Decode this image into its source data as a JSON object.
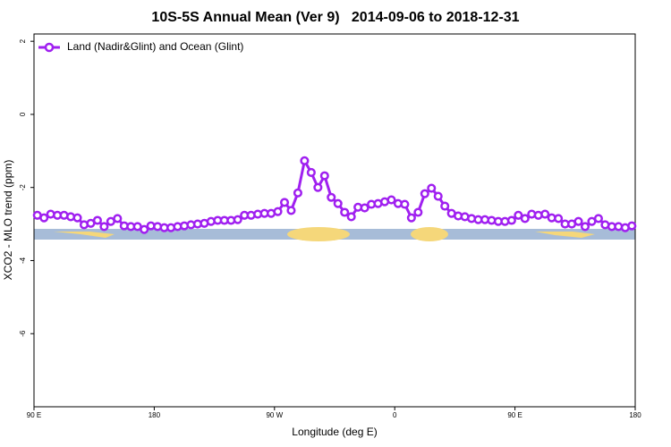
{
  "chart_data": {
    "type": "line",
    "title": "10S-5S Annual Mean (Ver 9)   2014-09-06 to 2018-12-31",
    "xlabel": "Longitude (deg E)",
    "ylabel": "XCO2 - MLO trend (ppm)",
    "xlim": [
      90,
      540
    ],
    "ylim": [
      -8,
      2.2
    ],
    "xticks": [
      {
        "value": 90,
        "label": "90 E"
      },
      180,
      {
        "value": 270,
        "label": "90 W"
      },
      {
        "value": 360,
        "label": "0"
      },
      {
        "value": 450,
        "label": "90 E"
      },
      {
        "value": 540,
        "label": "180"
      }
    ],
    "yticks": [
      2,
      0,
      -2,
      -4,
      -6
    ],
    "legend_position": "upper-left",
    "x": [
      92.5,
      97.5,
      102.5,
      107.5,
      112.5,
      117.5,
      122.5,
      127.5,
      132.5,
      137.5,
      142.5,
      147.5,
      152.5,
      157.5,
      162.5,
      167.5,
      172.5,
      177.5,
      182.5,
      187.5,
      192.5,
      197.5,
      202.5,
      207.5,
      212.5,
      217.5,
      222.5,
      227.5,
      232.5,
      237.5,
      242.5,
      247.5,
      252.5,
      257.5,
      262.5,
      267.5,
      272.5,
      277.5,
      282.5,
      287.5,
      292.5,
      297.5,
      302.5,
      307.5,
      312.5,
      317.5,
      322.5,
      327.5,
      332.5,
      337.5,
      342.5,
      347.5,
      352.5,
      357.5,
      362.5,
      367.5,
      372.5,
      377.5,
      382.5,
      387.5,
      392.5,
      397.5,
      402.5,
      407.5,
      412.5,
      417.5,
      422.5,
      427.5,
      432.5,
      437.5,
      442.5,
      447.5,
      452.5,
      457.5,
      462.5,
      467.5,
      472.5,
      477.5,
      482.5,
      487.5,
      492.5,
      497.5,
      502.5,
      507.5,
      512.5,
      517.5,
      522.5,
      527.5,
      532.5,
      537.5
    ],
    "series": [
      {
        "name": "Land (Nadir&Glint) and Ocean (Glint)",
        "color": "#a020f0",
        "values": [
          -2.76,
          -2.83,
          -2.73,
          -2.76,
          -2.76,
          -2.8,
          -2.83,
          -3.02,
          -2.98,
          -2.9,
          -3.07,
          -2.93,
          -2.85,
          -3.05,
          -3.07,
          -3.07,
          -3.15,
          -3.05,
          -3.07,
          -3.1,
          -3.1,
          -3.07,
          -3.05,
          -3.02,
          -3.0,
          -2.98,
          -2.93,
          -2.9,
          -2.9,
          -2.9,
          -2.88,
          -2.76,
          -2.76,
          -2.73,
          -2.71,
          -2.71,
          -2.66,
          -2.41,
          -2.63,
          -2.15,
          -1.27,
          -1.59,
          -2.0,
          -1.68,
          -2.27,
          -2.44,
          -2.68,
          -2.8,
          -2.54,
          -2.56,
          -2.46,
          -2.44,
          -2.39,
          -2.34,
          -2.44,
          -2.46,
          -2.83,
          -2.68,
          -2.17,
          -2.02,
          -2.24,
          -2.51,
          -2.71,
          -2.78,
          -2.8,
          -2.85,
          -2.88,
          -2.88,
          -2.9,
          -2.93,
          -2.93,
          -2.9,
          -2.76,
          -2.85,
          -2.73,
          -2.76,
          -2.73,
          -2.83,
          -2.85,
          -3.0,
          -3.0,
          -2.93,
          -3.07,
          -2.93,
          -2.85,
          -3.02,
          -3.07,
          -3.07,
          -3.1,
          -3.05
        ]
      }
    ]
  }
}
